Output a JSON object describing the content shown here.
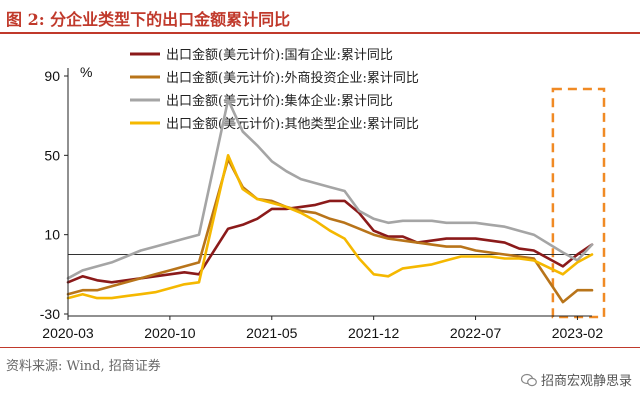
{
  "header": {
    "title": "图 2:  分企业类型下的出口金额累计同比"
  },
  "footer": {
    "source": "资料来源:  Wind,  招商证券",
    "watermark": "招商宏观静思录",
    "watermark_icon": "wechat-icon"
  },
  "colors": {
    "accent": "#c0392b",
    "highlight_box": "#f08a24",
    "zero_line": "#333333"
  },
  "chart_data": {
    "type": "line",
    "ylabel": "%",
    "ylim": [
      -30,
      90
    ],
    "yticks": [
      90,
      50,
      10,
      -30
    ],
    "xtick_labels": [
      "2020-03",
      "2020-10",
      "2021-05",
      "2021-12",
      "2022-07",
      "2023-02"
    ],
    "xlim": [
      "2020-03",
      "2023-03"
    ],
    "grid": false,
    "legend": "top",
    "highlight_box": {
      "x_start": "2023-01",
      "x_end": "2023-03"
    },
    "x": [
      "2020-03",
      "2020-04",
      "2020-05",
      "2020-06",
      "2020-07",
      "2020-08",
      "2020-09",
      "2020-10",
      "2020-11",
      "2020-12",
      "2021-01",
      "2021-02",
      "2021-03",
      "2021-04",
      "2021-05",
      "2021-06",
      "2021-07",
      "2021-08",
      "2021-09",
      "2021-10",
      "2021-11",
      "2021-12",
      "2022-01",
      "2022-02",
      "2022-03",
      "2022-04",
      "2022-05",
      "2022-06",
      "2022-07",
      "2022-08",
      "2022-09",
      "2022-10",
      "2022-11",
      "2022-12",
      "2023-01",
      "2023-02",
      "2023-03"
    ],
    "series": [
      {
        "name": "出口金额(美元计价):国有企业:累计同比",
        "color": "#8b1a1a",
        "values": [
          -14,
          -11,
          -13,
          -14,
          -13,
          -12,
          -11,
          -10,
          -9,
          -10,
          null,
          13,
          15,
          18,
          23,
          23,
          24,
          25,
          27,
          27,
          21,
          12,
          9,
          9,
          6,
          7,
          8,
          8,
          8,
          7,
          6,
          3,
          2,
          null,
          -6,
          0,
          5
        ]
      },
      {
        "name": "出口金额(美元计价):外商投资企业:累计同比",
        "color": "#b8741a",
        "values": [
          -20,
          -18,
          -18,
          -16,
          -14,
          -12,
          -10,
          -8,
          -6,
          -4,
          null,
          48,
          34,
          28,
          27,
          24,
          22,
          21,
          18,
          16,
          13,
          10,
          8,
          7,
          6,
          5,
          4,
          4,
          2,
          1,
          0,
          -1,
          -2,
          null,
          -24,
          -18,
          -18
        ]
      },
      {
        "name": "出口金额(美元计价):集体企业:累计同比",
        "color": "#a5a5a5",
        "values": [
          -12,
          -8,
          -6,
          -4,
          -1,
          2,
          4,
          6,
          8,
          10,
          null,
          78,
          62,
          55,
          47,
          42,
          38,
          36,
          34,
          32,
          22,
          18,
          16,
          17,
          17,
          17,
          16,
          16,
          16,
          15,
          14,
          12,
          10,
          null,
          1,
          -3,
          5
        ]
      },
      {
        "name": "出口金额(美元计价):其他类型企业:累计同比",
        "color": "#f5b800",
        "values": [
          -22,
          -20,
          -22,
          -22,
          -21,
          -20,
          -19,
          -17,
          -15,
          -14,
          null,
          50,
          33,
          28,
          26,
          24,
          21,
          17,
          12,
          8,
          -2,
          -10,
          -11,
          -7,
          -6,
          -5,
          -3,
          -1,
          -1,
          -1,
          -2,
          -2,
          -3,
          null,
          -10,
          -4,
          0
        ]
      }
    ]
  }
}
